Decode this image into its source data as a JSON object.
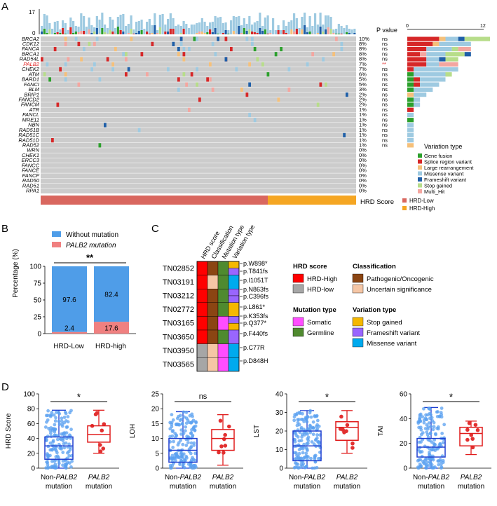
{
  "colors": {
    "grid": "#cccccc",
    "gene_fusion": "#2ca02c",
    "splice": "#d62728",
    "large_rearr": "#f5c07a",
    "missense": "#9ecae1",
    "frameshift": "#1f5fa8",
    "stop": "#b7dd8a",
    "multi_hit": "#f4a6a0",
    "hrd_low": "#d9675f",
    "hrd_high": "#f5a623",
    "without": "#4f9de8",
    "palb2": "#f08080",
    "red": "#ff0000",
    "gray": "#a6a6a6",
    "brown": "#8b4513",
    "peach": "#f5c6a5",
    "magenta": "#ff4dff",
    "green": "#4f8a2f",
    "gold": "#f5b800",
    "purple": "#9966ff",
    "cyan": "#00aaee",
    "box_blue": "#1f3fd0",
    "box_red": "#e01b1b",
    "dot_blue": "#5aa0f0",
    "dot_red": "#e23030"
  },
  "panelA": {
    "letter": "A",
    "ytop": "17",
    "ybottom": "0",
    "pvalue_header": "P value",
    "scale_min": "0",
    "scale_max": "12",
    "genes": [
      "BRCA2",
      "CDK12",
      "FANCA",
      "BRCA1",
      "RAD54L",
      "PALB2",
      "CHEK2",
      "ATM",
      "BARD1",
      "FANCI",
      "BLM",
      "BRIP1",
      "FANCD2",
      "FANCM",
      "ATR",
      "FANCL",
      "MRE11",
      "NBN",
      "RAD51B",
      "RAD51C",
      "RAD51D",
      "RAD52",
      "WRN",
      "CHEK1",
      "ERCC3",
      "FANCC",
      "FANCE",
      "FANCF",
      "RAD50",
      "RAD51",
      "RPA1"
    ],
    "percents": [
      "10%",
      "8%",
      "8%",
      "8%",
      "8%",
      "7%",
      "7%",
      "6%",
      "5%",
      "5%",
      "3%",
      "2%",
      "2%",
      "2%",
      "1%",
      "1%",
      "1%",
      "1%",
      "1%",
      "1%",
      "1%",
      "1%",
      "0%",
      "0%",
      "0%",
      "0%",
      "0%",
      "0%",
      "0%",
      "0%",
      "0%"
    ],
    "pvalues": [
      "ns",
      "ns",
      "ns",
      "ns",
      "ns",
      "**",
      "ns",
      "ns",
      "ns",
      "ns",
      "ns",
      "ns",
      "ns",
      "ns",
      "ns",
      "ns",
      "ns",
      "ns",
      "ns",
      "ns",
      "ns",
      "ns"
    ],
    "right_bars": [
      [
        [
          "splice",
          5
        ],
        [
          "large_rearr",
          1
        ],
        [
          "missense",
          2
        ],
        [
          "frameshift",
          1
        ],
        [
          "stop",
          4
        ]
      ],
      [
        [
          "splice",
          4
        ],
        [
          "large_rearr",
          1
        ],
        [
          "missense",
          5
        ]
      ],
      [
        [
          "splice",
          3
        ],
        [
          "missense",
          4
        ],
        [
          "stop",
          1
        ],
        [
          "multi_hit",
          2
        ]
      ],
      [
        [
          "splice",
          2
        ],
        [
          "multi_hit",
          1
        ],
        [
          "missense",
          3
        ],
        [
          "stop",
          3
        ],
        [
          "frameshift",
          1
        ]
      ],
      [
        [
          "splice",
          3
        ],
        [
          "missense",
          2
        ],
        [
          "frameshift",
          1
        ],
        [
          "stop",
          2
        ]
      ],
      [
        [
          "splice",
          3
        ],
        [
          "missense",
          2
        ],
        [
          "multi_hit",
          3
        ]
      ],
      [
        [
          "splice",
          1
        ],
        [
          "missense",
          7
        ]
      ],
      [
        [
          "gene_fusion",
          1
        ],
        [
          "missense",
          5
        ],
        [
          "stop",
          1
        ]
      ],
      [
        [
          "gene_fusion",
          1
        ],
        [
          "splice",
          1
        ],
        [
          "missense",
          4
        ]
      ],
      [
        [
          "gene_fusion",
          1
        ],
        [
          "splice",
          1
        ],
        [
          "missense",
          3
        ]
      ],
      [
        [
          "gene_fusion",
          1
        ],
        [
          "missense",
          3
        ]
      ],
      [
        [
          "large_rearr",
          1
        ],
        [
          "missense",
          2
        ]
      ],
      [
        [
          "gene_fusion",
          1
        ],
        [
          "missense",
          1
        ]
      ],
      [
        [
          "gene_fusion",
          1
        ],
        [
          "missense",
          1
        ]
      ],
      [
        [
          "splice",
          1
        ]
      ],
      [
        [
          "missense",
          1
        ]
      ],
      [
        [
          "gene_fusion",
          1
        ]
      ],
      [
        [
          "missense",
          1
        ]
      ],
      [
        [
          "missense",
          1
        ]
      ],
      [
        [
          "missense",
          1
        ]
      ],
      [
        [
          "missense",
          1
        ]
      ],
      [
        [
          "large_rearr",
          1
        ]
      ]
    ],
    "legend_title": "Variation type",
    "legend": [
      [
        "gene_fusion",
        "Gene fusion"
      ],
      [
        "splice",
        "Splice region variant"
      ],
      [
        "large_rearr",
        "Large rearrangement"
      ],
      [
        "missense",
        "Missense variant"
      ],
      [
        "frameshift",
        "Frameshift variant"
      ],
      [
        "stop",
        "Stop gained"
      ],
      [
        "multi_hit",
        "Multi_Hit"
      ]
    ],
    "hrd_label": "HRD Score",
    "hrd_legend": [
      [
        "hrd_low",
        "HRD-Low"
      ],
      [
        "hrd_high",
        "HRD-High"
      ]
    ]
  },
  "panelB": {
    "letter": "B",
    "legend": [
      "Without mutation",
      "PALB2 mutation"
    ],
    "ylabel": "Percentage (%)",
    "yticks": [
      "0",
      "25",
      "50",
      "75",
      "100"
    ],
    "sig": "**",
    "chart_data": {
      "type": "bar",
      "categories": [
        "HRD-Low",
        "HRD-high"
      ],
      "series": [
        {
          "name": "Without mutation",
          "values": [
            97.6,
            82.4
          ]
        },
        {
          "name": "PALB2 mutation",
          "values": [
            2.4,
            17.6
          ]
        }
      ],
      "labels_without": [
        "97.6",
        "82.4"
      ],
      "labels_palb2": [
        "2.4",
        "17.6"
      ],
      "ylabel": "Percentage (%)",
      "ylim": [
        0,
        100
      ]
    }
  },
  "panelC": {
    "letter": "C",
    "columns": [
      "HRD score",
      "Classification",
      "Mutation type",
      "Variation type"
    ],
    "samples": [
      "TN02852",
      "TN03191",
      "TN03212",
      "TN02772",
      "TN03165",
      "TN03650",
      "TN03950",
      "TN03565"
    ],
    "variants": [
      "p.W898*",
      "p.T841fs",
      "p.I1051T",
      "p.N863fs",
      "p.C396fs",
      "p.L861*",
      "p.K353fs",
      "p.Q377*",
      "p.F440fs",
      "p.C77R",
      "p.D848H"
    ],
    "legend_hrd_title": "HRD score",
    "legend_hrd": [
      "HRD-High",
      "HRD-low"
    ],
    "legend_class_title": "Classification",
    "legend_class": [
      "Pathogenic/Oncogenic",
      "Uncertain significance"
    ],
    "legend_mut_title": "Mutation type",
    "legend_mut": [
      "Somatic",
      "Germline"
    ],
    "legend_var_title": "Variation type",
    "legend_var": [
      "Stop gained",
      "Frameshift variant",
      "Missense variant"
    ]
  },
  "panelD": {
    "letter": "D",
    "xlabels": [
      [
        "Non-",
        "PALB2",
        "mutation"
      ],
      [
        "",
        "PALB2",
        "mutation"
      ]
    ],
    "chart_data": [
      {
        "type": "box",
        "ylabel": "HRD Score",
        "sig": "*",
        "ylim": [
          0,
          100
        ],
        "yticks": [
          "0",
          "20",
          "40",
          "60",
          "80",
          "100"
        ],
        "groups": [
          {
            "name": "Non-PALB2 mutation",
            "min": 0,
            "q1": 12,
            "median": 30,
            "q3": 42,
            "max": 78
          },
          {
            "name": "PALB2 mutation",
            "min": 20,
            "q1": 35,
            "median": 45,
            "q3": 57,
            "max": 78
          }
        ]
      },
      {
        "type": "box",
        "ylabel": "LOH",
        "sig": "ns",
        "ylim": [
          0,
          25
        ],
        "yticks": [
          "0",
          "5",
          "10",
          "15",
          "20",
          "25"
        ],
        "groups": [
          {
            "name": "Non-PALB2 mutation",
            "min": 0,
            "q1": 2,
            "median": 6,
            "q3": 10,
            "max": 19
          },
          {
            "name": "PALB2 mutation",
            "min": 1,
            "q1": 6,
            "median": 10,
            "q3": 13,
            "max": 18
          }
        ]
      },
      {
        "type": "box",
        "ylabel": "LST",
        "sig": "*",
        "ylim": [
          0,
          40
        ],
        "yticks": [
          "0",
          "10",
          "20",
          "30",
          "40"
        ],
        "groups": [
          {
            "name": "Non-PALB2 mutation",
            "min": 0,
            "q1": 4,
            "median": 12,
            "q3": 20,
            "max": 31
          },
          {
            "name": "PALB2 mutation",
            "min": 8,
            "q1": 15,
            "median": 22,
            "q3": 25,
            "max": 31
          }
        ]
      },
      {
        "type": "box",
        "ylabel": "TAI",
        "sig": "*",
        "ylim": [
          0,
          60
        ],
        "yticks": [
          "0",
          "20",
          "40",
          "60"
        ],
        "groups": [
          {
            "name": "Non-PALB2 mutation",
            "min": 0,
            "q1": 9,
            "median": 17,
            "q3": 24,
            "max": 49
          },
          {
            "name": "PALB2 mutation",
            "min": 11,
            "q1": 18,
            "median": 28,
            "q3": 33,
            "max": 38
          }
        ]
      }
    ]
  }
}
